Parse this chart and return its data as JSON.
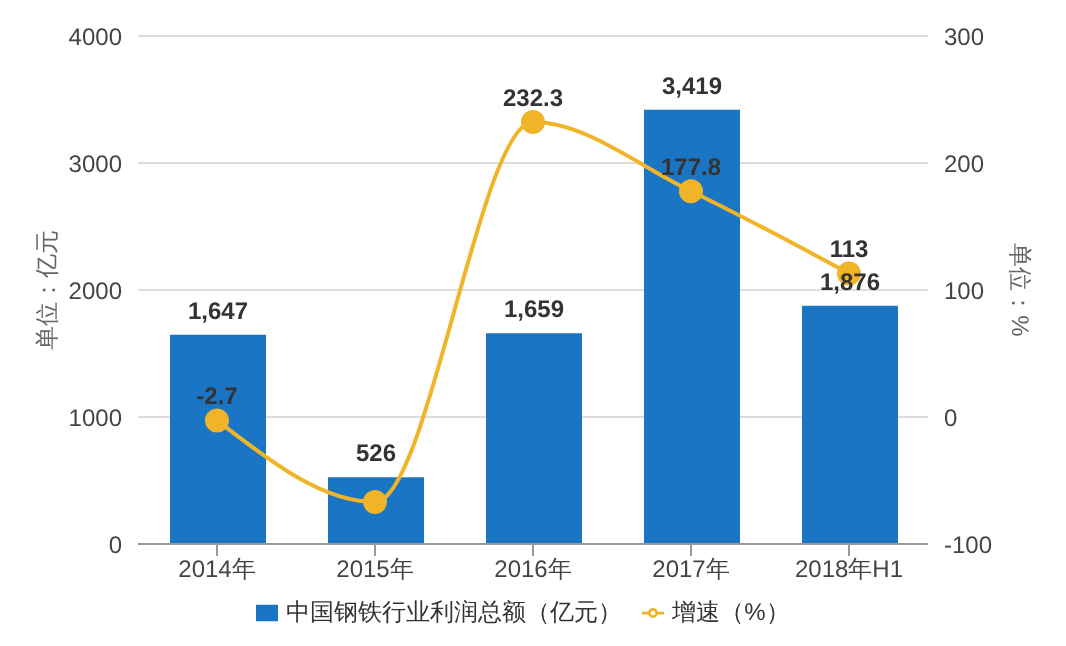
{
  "chart_data": {
    "type": "bar",
    "ylabel": "单位：亿元",
    "y2label": "单位：%",
    "categories": [
      "2014年",
      "2015年",
      "2016年",
      "2017年",
      "2018年H1"
    ],
    "series": [
      {
        "name": "中国钢铁行业利润总额（亿元）",
        "color": "#1a75c4",
        "values": [
          1647,
          526,
          1659,
          3419,
          1876
        ],
        "value_labels": [
          "1,647",
          "526",
          "1,659",
          "3,419",
          "1,876"
        ]
      },
      {
        "name": "增速（%）",
        "type": "line",
        "axis": "y2",
        "color": "#f0b429",
        "values": [
          -2.7,
          -67,
          232.3,
          177.8,
          113
        ],
        "value_labels": [
          "-2.7",
          null,
          "232.3",
          "177.8",
          "113"
        ]
      }
    ],
    "ylim": [
      0,
      4000
    ],
    "yticks": [
      0,
      1000,
      2000,
      3000,
      4000
    ],
    "y2lim": [
      -100,
      300
    ],
    "y2ticks": [
      -100,
      0,
      100,
      200,
      300
    ],
    "grid": "y",
    "legend": "bottom",
    "marker": "circle"
  }
}
